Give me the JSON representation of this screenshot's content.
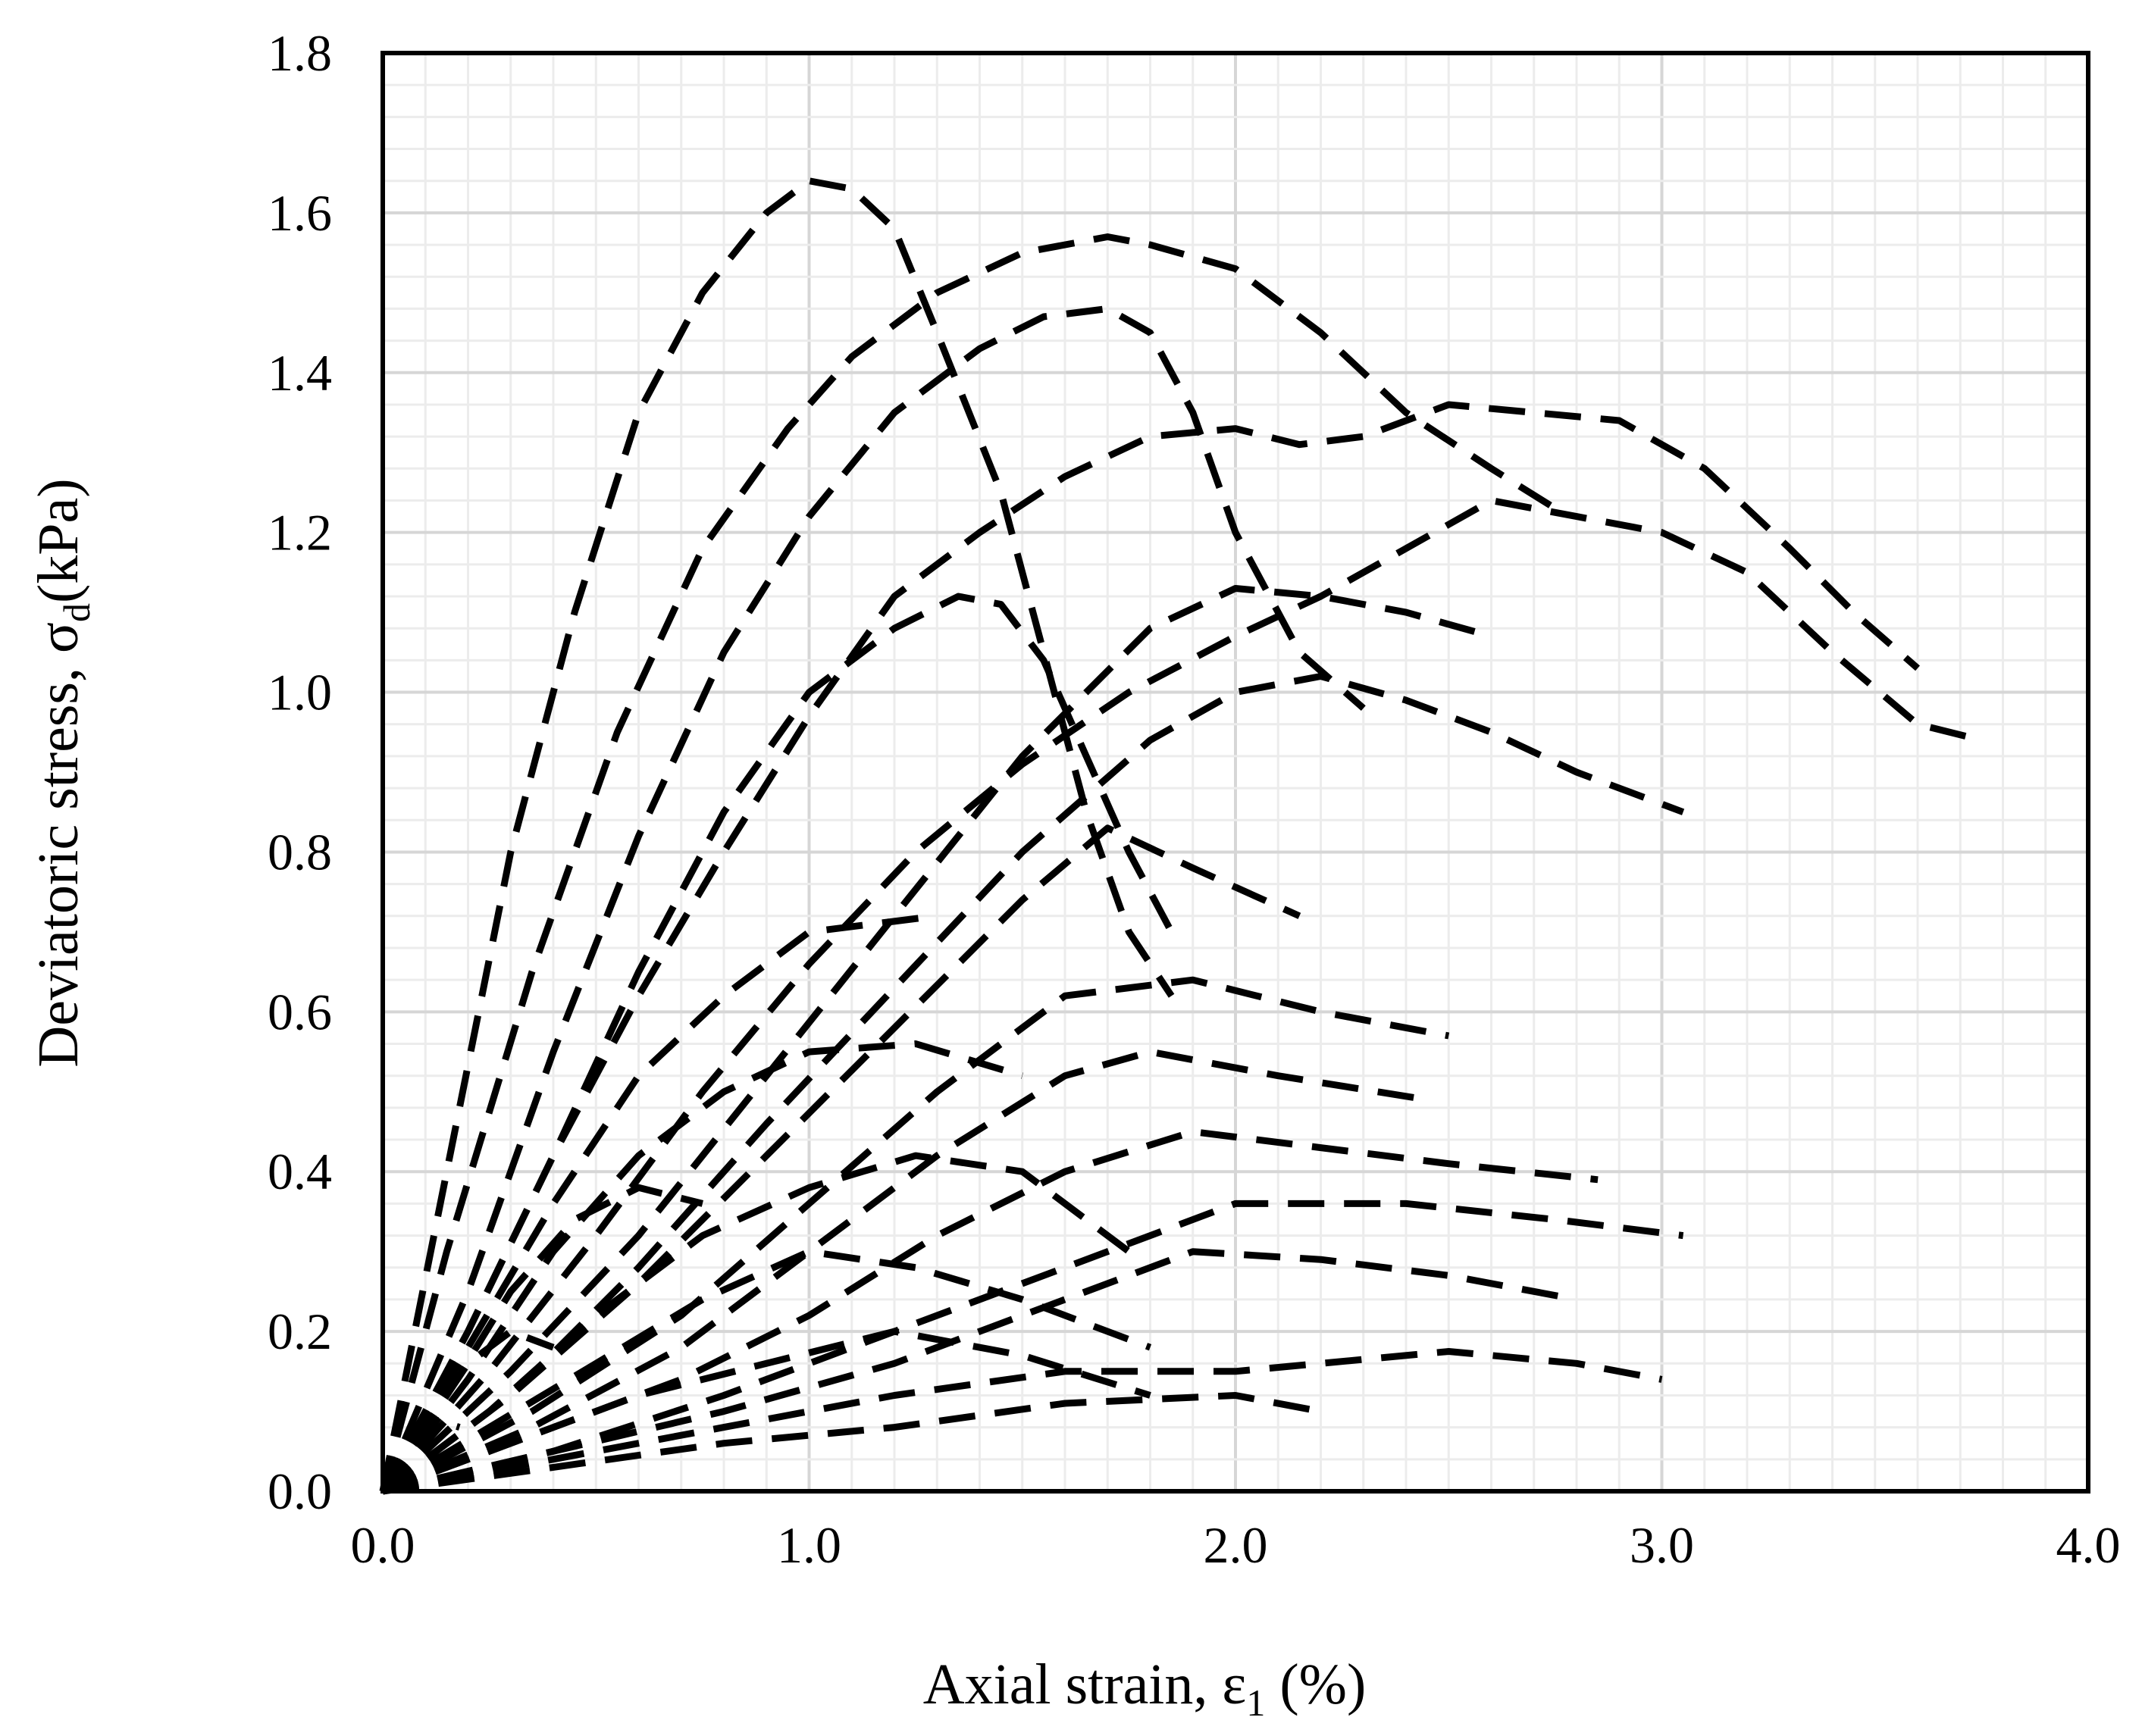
{
  "chart_data": {
    "type": "line",
    "title": "",
    "xlabel": {
      "main": "Axial strain, ε",
      "sub": "1",
      "suffix": " (%)"
    },
    "ylabel": {
      "main": "Deviatoric stress, σ",
      "sub": "d",
      "suffix": "(kPa)"
    },
    "xlim": [
      0,
      4.0
    ],
    "ylim": [
      0,
      1.8
    ],
    "xticks": [
      "0.0",
      "1.0",
      "2.0",
      "3.0",
      "4.0"
    ],
    "yticks": [
      "0.0",
      "0.2",
      "0.4",
      "0.6",
      "0.8",
      "1.0",
      "1.2",
      "1.4",
      "1.6",
      "1.8"
    ],
    "grid": true,
    "legend": "none",
    "line_color": "#000000",
    "line_style": "dashed",
    "series": [
      {
        "x": [
          0,
          0.15,
          0.3,
          0.45,
          0.6,
          0.75,
          0.9,
          1.0,
          1.1,
          1.2,
          1.3,
          1.45,
          1.55,
          1.65,
          1.75,
          1.85
        ],
        "y": [
          0,
          0.4,
          0.8,
          1.1,
          1.35,
          1.5,
          1.6,
          1.64,
          1.63,
          1.58,
          1.45,
          1.25,
          1.05,
          0.85,
          0.7,
          0.62
        ]
      },
      {
        "x": [
          0,
          0.15,
          0.35,
          0.55,
          0.75,
          0.95,
          1.1,
          1.3,
          1.5,
          1.7,
          1.8,
          2.0,
          2.2,
          2.4,
          2.6,
          2.75
        ],
        "y": [
          0,
          0.3,
          0.65,
          0.95,
          1.18,
          1.33,
          1.42,
          1.5,
          1.55,
          1.57,
          1.56,
          1.53,
          1.45,
          1.35,
          1.28,
          1.23
        ]
      },
      {
        "x": [
          0,
          0.2,
          0.4,
          0.6,
          0.8,
          1.0,
          1.2,
          1.4,
          1.55,
          1.7,
          1.8,
          1.9,
          2.0,
          2.15,
          2.3
        ],
        "y": [
          0,
          0.25,
          0.55,
          0.82,
          1.05,
          1.22,
          1.35,
          1.43,
          1.47,
          1.48,
          1.45,
          1.35,
          1.2,
          1.05,
          0.98
        ]
      },
      {
        "x": [
          0,
          0.2,
          0.4,
          0.6,
          0.8,
          1.0,
          1.2,
          1.4,
          1.6,
          1.8,
          2.0,
          2.15,
          2.3,
          2.5,
          2.7,
          2.9,
          3.1,
          3.3,
          3.45,
          3.6
        ],
        "y": [
          0,
          0.2,
          0.42,
          0.62,
          0.8,
          0.97,
          1.12,
          1.2,
          1.27,
          1.32,
          1.33,
          1.31,
          1.32,
          1.36,
          1.35,
          1.34,
          1.28,
          1.18,
          1.1,
          1.03
        ]
      },
      {
        "x": [
          0,
          0.2,
          0.4,
          0.6,
          0.8,
          1.0,
          1.2,
          1.35,
          1.45,
          1.55,
          1.65,
          1.75,
          1.85
        ],
        "y": [
          0,
          0.2,
          0.42,
          0.65,
          0.85,
          1.0,
          1.08,
          1.12,
          1.11,
          1.04,
          0.92,
          0.8,
          0.7
        ]
      },
      {
        "x": [
          0,
          0.25,
          0.5,
          0.75,
          1.0,
          1.25,
          1.5,
          1.75,
          2.0,
          2.2,
          2.4,
          2.6,
          2.8,
          3.0,
          3.2,
          3.4,
          3.6,
          3.75
        ],
        "y": [
          0,
          0.15,
          0.32,
          0.5,
          0.66,
          0.8,
          0.91,
          1.0,
          1.07,
          1.12,
          1.18,
          1.24,
          1.22,
          1.2,
          1.15,
          1.05,
          0.96,
          0.94
        ]
      },
      {
        "x": [
          0,
          0.3,
          0.6,
          0.9,
          1.2,
          1.5,
          1.8,
          2.0,
          2.2,
          2.4,
          2.6
        ],
        "y": [
          0,
          0.15,
          0.32,
          0.52,
          0.72,
          0.92,
          1.08,
          1.13,
          1.12,
          1.1,
          1.07
        ]
      },
      {
        "x": [
          0,
          0.3,
          0.6,
          0.9,
          1.2,
          1.5,
          1.8,
          2.0,
          2.2,
          2.4,
          2.6,
          2.8,
          3.05
        ],
        "y": [
          0,
          0.12,
          0.28,
          0.46,
          0.63,
          0.8,
          0.94,
          1.0,
          1.02,
          0.99,
          0.95,
          0.9,
          0.85
        ]
      },
      {
        "x": [
          0,
          0.3,
          0.6,
          0.9,
          1.2,
          1.5,
          1.7,
          1.9,
          2.15
        ],
        "y": [
          0,
          0.12,
          0.26,
          0.42,
          0.58,
          0.74,
          0.83,
          0.78,
          0.72
        ]
      },
      {
        "x": [
          0,
          0.35,
          0.7,
          1.0,
          1.3,
          1.6,
          1.9,
          2.2,
          2.5
        ],
        "y": [
          0,
          0.1,
          0.22,
          0.36,
          0.5,
          0.62,
          0.64,
          0.6,
          0.57
        ]
      },
      {
        "x": [
          0,
          0.35,
          0.7,
          1.0,
          1.3,
          1.6,
          1.8,
          2.1,
          2.45
        ],
        "y": [
          0,
          0.08,
          0.18,
          0.3,
          0.42,
          0.52,
          0.55,
          0.52,
          0.49
        ]
      },
      {
        "x": [
          0,
          0.35,
          0.7,
          1.0,
          1.3,
          1.6,
          1.9,
          2.2,
          2.5,
          2.85
        ],
        "y": [
          0,
          0.07,
          0.14,
          0.22,
          0.32,
          0.4,
          0.45,
          0.43,
          0.41,
          0.39
        ]
      },
      {
        "x": [
          0,
          0.4,
          0.8,
          1.2,
          1.6,
          2.0,
          2.4,
          2.75,
          3.05
        ],
        "y": [
          0,
          0.05,
          0.12,
          0.2,
          0.28,
          0.36,
          0.36,
          0.34,
          0.32
        ]
      },
      {
        "x": [
          0,
          0.4,
          0.8,
          1.2,
          1.6,
          1.9,
          2.2,
          2.5,
          2.8
        ],
        "y": [
          0,
          0.05,
          0.1,
          0.16,
          0.24,
          0.3,
          0.29,
          0.27,
          0.24
        ]
      },
      {
        "x": [
          0,
          0.4,
          0.8,
          1.2,
          1.6,
          2.0,
          2.2,
          2.5,
          2.8,
          3.0
        ],
        "y": [
          0,
          0.04,
          0.08,
          0.12,
          0.15,
          0.15,
          0.16,
          0.175,
          0.16,
          0.14
        ]
      },
      {
        "x": [
          0,
          0.4,
          0.8,
          1.2,
          1.6,
          2.0,
          2.2
        ],
        "y": [
          0,
          0.03,
          0.06,
          0.08,
          0.11,
          0.12,
          0.1
        ]
      },
      {
        "x": [
          0,
          0.3,
          0.6,
          0.9,
          1.2,
          1.5,
          1.8
        ],
        "y": [
          0,
          0.06,
          0.12,
          0.16,
          0.2,
          0.17,
          0.12
        ]
      },
      {
        "x": [
          0,
          0.25,
          0.5,
          0.75,
          1.0,
          1.25,
          1.5,
          1.8
        ],
        "y": [
          0,
          0.08,
          0.16,
          0.24,
          0.3,
          0.28,
          0.24,
          0.18
        ]
      },
      {
        "x": [
          0,
          0.25,
          0.5,
          0.75,
          1.0,
          1.25,
          1.5,
          1.75
        ],
        "y": [
          0,
          0.1,
          0.22,
          0.32,
          0.38,
          0.42,
          0.4,
          0.3
        ]
      },
      {
        "x": [
          0,
          0.2,
          0.4,
          0.6,
          0.8,
          1.0,
          1.25,
          1.5
        ],
        "y": [
          0,
          0.14,
          0.3,
          0.42,
          0.5,
          0.55,
          0.56,
          0.52
        ]
      },
      {
        "x": [
          0,
          0.2,
          0.4,
          0.6,
          0.8,
          1.0,
          1.3
        ],
        "y": [
          0,
          0.18,
          0.36,
          0.52,
          0.62,
          0.7,
          0.72
        ]
      },
      {
        "x": [
          0,
          0.15,
          0.3,
          0.45,
          0.6,
          0.75
        ],
        "y": [
          0,
          0.12,
          0.25,
          0.34,
          0.38,
          0.36
        ]
      },
      {
        "x": [
          0,
          0.1,
          0.2,
          0.3,
          0.4
        ],
        "y": [
          0,
          0.08,
          0.16,
          0.2,
          0.18
        ]
      },
      {
        "x": [
          0,
          0.06,
          0.12,
          0.18
        ],
        "y": [
          0,
          0.05,
          0.09,
          0.08
        ]
      },
      {
        "x": [
          0,
          0.02,
          0.04,
          0.06
        ],
        "y": [
          0,
          0.02,
          0.03,
          0.02
        ]
      }
    ]
  }
}
